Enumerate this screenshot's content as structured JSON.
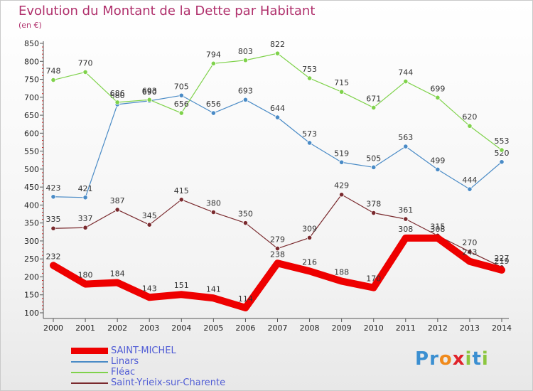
{
  "title": "Evolution du Montant de la Dette par Habitant",
  "unit": "(en €)",
  "logo": {
    "text": "Proxiti",
    "letters": [
      {
        "ch": "P",
        "color": "#3b8fd1"
      },
      {
        "ch": "r",
        "color": "#3b8fd1"
      },
      {
        "ch": "o",
        "color": "#f08a1c"
      },
      {
        "ch": "x",
        "color": "#e0222a"
      },
      {
        "ch": "i",
        "color": "#8cc63f"
      },
      {
        "ch": "t",
        "color": "#3b8fd1"
      },
      {
        "ch": "i",
        "color": "#8cc63f"
      }
    ]
  },
  "chart_data": {
    "type": "line",
    "x": [
      "2000",
      "2001",
      "2002",
      "2003",
      "2004",
      "2005",
      "2006",
      "2007",
      "2008",
      "2009",
      "2010",
      "2011",
      "2012",
      "2013",
      "2014"
    ],
    "ylim": [
      100,
      850
    ],
    "yticks": [
      100,
      150,
      200,
      250,
      300,
      350,
      400,
      450,
      500,
      550,
      600,
      650,
      700,
      750,
      800,
      850
    ],
    "grid": false,
    "legend_position": "bottom-left",
    "series": [
      {
        "name": "SAINT-MICHEL",
        "color": "#ee0000",
        "bold": true,
        "values": [
          232,
          180,
          184,
          143,
          151,
          141,
          114,
          238,
          216,
          188,
          170,
          308,
          308,
          243,
          219
        ]
      },
      {
        "name": "Linars",
        "color": "#4a8bc6",
        "bold": false,
        "values": [
          423,
          421,
          680,
          690,
          705,
          656,
          693,
          644,
          573,
          519,
          505,
          563,
          499,
          444,
          520
        ]
      },
      {
        "name": "Fléac",
        "color": "#7fd24b",
        "bold": false,
        "values": [
          748,
          770,
          686,
          693,
          656,
          794,
          803,
          822,
          753,
          715,
          671,
          744,
          699,
          620,
          553
        ]
      },
      {
        "name": "Saint-Yrieix-sur-Charente",
        "color": "#7a2a2e",
        "bold": false,
        "values": [
          335,
          337,
          387,
          345,
          415,
          380,
          350,
          279,
          309,
          429,
          378,
          361,
          315,
          270,
          227
        ]
      }
    ]
  }
}
